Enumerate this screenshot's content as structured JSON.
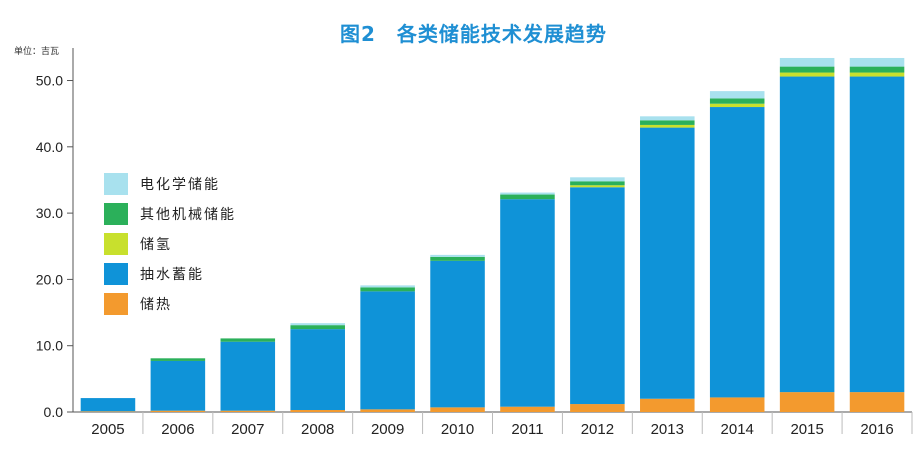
{
  "title": "图2　各类储能技术发展趋势",
  "unit": "单位：吉瓦",
  "chart_data": {
    "type": "bar",
    "stacked": true,
    "categories": [
      "2005",
      "2006",
      "2007",
      "2008",
      "2009",
      "2010",
      "2011",
      "2012",
      "2013",
      "2014",
      "2015",
      "2016"
    ],
    "series": [
      {
        "name": "储热",
        "color": "#f39a2e",
        "values": [
          0.1,
          0.2,
          0.2,
          0.3,
          0.4,
          0.7,
          0.8,
          1.2,
          2.0,
          2.2,
          3.0,
          3.0
        ]
      },
      {
        "name": "抽水蓄能",
        "color": "#0f93d8",
        "values": [
          2.0,
          7.5,
          10.4,
          12.2,
          17.8,
          22.1,
          31.3,
          32.7,
          40.9,
          43.8,
          47.6,
          47.6
        ]
      },
      {
        "name": "储氢",
        "color": "#c8e02d",
        "values": [
          0,
          0,
          0,
          0,
          0,
          0,
          0,
          0.3,
          0.4,
          0.5,
          0.6,
          0.6
        ]
      },
      {
        "name": "其他机械储能",
        "color": "#2bb05a",
        "values": [
          0,
          0.4,
          0.5,
          0.6,
          0.6,
          0.6,
          0.7,
          0.6,
          0.7,
          0.8,
          0.9,
          0.9
        ]
      },
      {
        "name": "电化学储能",
        "color": "#a8e1ee",
        "values": [
          0,
          0,
          0,
          0.3,
          0.3,
          0.3,
          0.3,
          0.6,
          0.6,
          1.1,
          1.3,
          1.3
        ]
      }
    ],
    "legend_order": [
      "电化学储能",
      "其他机械储能",
      "储氢",
      "抽水蓄能",
      "储热"
    ],
    "ylim": [
      0,
      54
    ],
    "yticks": [
      "0.0",
      "10.0",
      "20.0",
      "30.0",
      "40.0",
      "50.0"
    ],
    "legend_position": "left"
  }
}
